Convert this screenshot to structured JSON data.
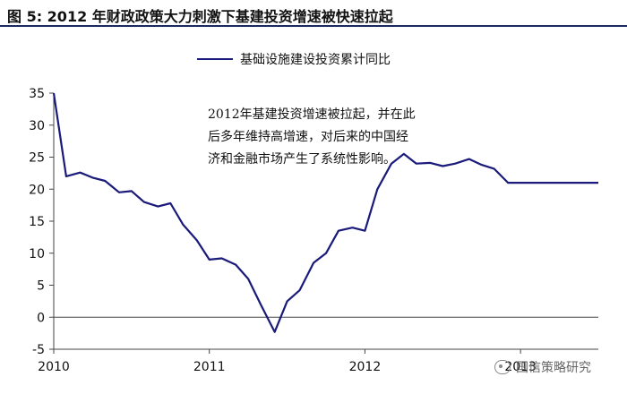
{
  "header": {
    "title": "图 5: 2012 年财政政策大力刺激下基建投资增速被快速拉起"
  },
  "annotation": {
    "lines": [
      "2012年基建投资增速被拉起，并在此",
      "后多年维持高增速，对后来的中国经",
      "济和金融市场产生了系统性影响。"
    ]
  },
  "watermark": {
    "text": "国信策略研究",
    "icon": "wechat-icon"
  },
  "chart_data": {
    "type": "line",
    "title": "",
    "xlabel": "",
    "ylabel": "",
    "ylim": [
      -5,
      35
    ],
    "xlim": [
      2010,
      2013.5
    ],
    "yticks": [
      35,
      30,
      25,
      20,
      15,
      10,
      5,
      0,
      -5
    ],
    "xticks": [
      2010,
      2011,
      2012,
      2013
    ],
    "xtick_labels": [
      "2010",
      "2011",
      "2012",
      "2013"
    ],
    "grid": false,
    "legend_position": "top",
    "series": [
      {
        "name": "基础设施建设投资累计同比",
        "color": "#1a1a7a",
        "x": [
          2010.0,
          2010.08,
          2010.17,
          2010.25,
          2010.33,
          2010.42,
          2010.5,
          2010.58,
          2010.67,
          2010.75,
          2010.83,
          2010.92,
          2011.0,
          2011.08,
          2011.17,
          2011.25,
          2011.33,
          2011.42,
          2011.5,
          2011.58,
          2011.67,
          2011.75,
          2011.83,
          2011.92,
          2012.0,
          2012.08,
          2012.17,
          2012.25,
          2012.33,
          2012.42,
          2012.5,
          2012.58,
          2012.67,
          2012.75,
          2012.83,
          2012.92,
          2013.0,
          2013.08,
          2013.17,
          2013.25,
          2013.33,
          2013.42,
          2013.5
        ],
        "y": [
          35.0,
          22.0,
          22.6,
          21.8,
          21.3,
          19.5,
          19.7,
          18.0,
          17.3,
          17.8,
          14.5,
          12.0,
          9.0,
          9.2,
          8.2,
          6.0,
          2.0,
          -2.3,
          2.5,
          4.2,
          8.5,
          10.0,
          13.5,
          14.0,
          13.5,
          20.0,
          24.0,
          25.5,
          24.0,
          24.1,
          23.6,
          24.0,
          24.7,
          23.8,
          23.2,
          21.0,
          21.0,
          21.0,
          21.0,
          21.0,
          21.0,
          21.0,
          21.0
        ]
      }
    ]
  }
}
